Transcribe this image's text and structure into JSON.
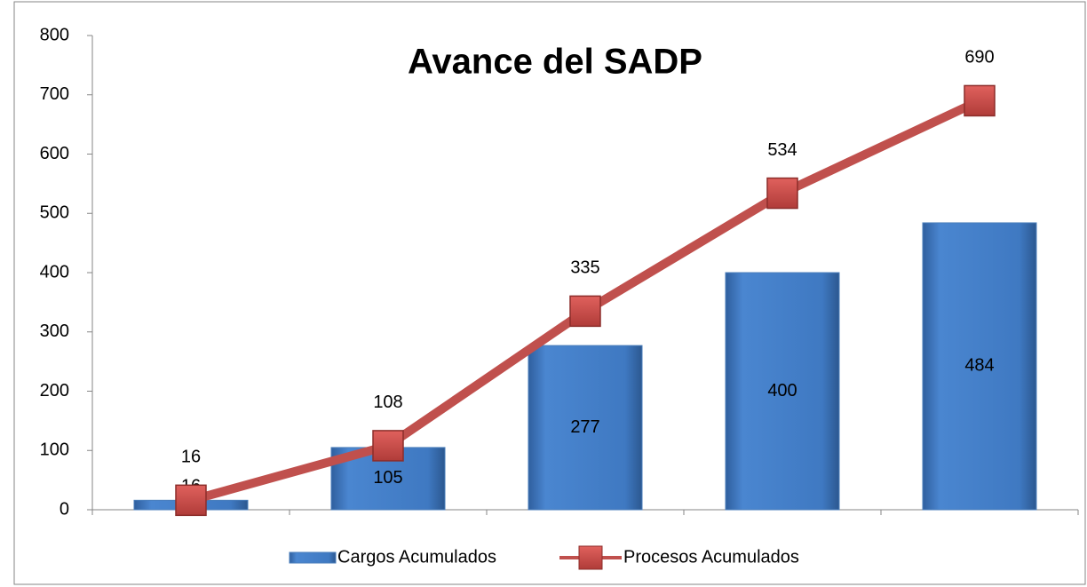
{
  "chart_data": {
    "type": "bar",
    "title": "Avance del SADP",
    "categories": [
      null,
      null,
      null,
      null,
      null
    ],
    "series": [
      {
        "name": "Cargos Acumulados",
        "type": "bar",
        "color": "#4a7ebb",
        "values": [
          16,
          105,
          277,
          400,
          484
        ]
      },
      {
        "name": "Procesos Acumulados",
        "type": "line",
        "color": "#c0504d",
        "values": [
          16,
          108,
          335,
          534,
          690
        ]
      }
    ],
    "ylim": [
      0,
      800
    ],
    "yticks": [
      0,
      100,
      200,
      300,
      400,
      500,
      600,
      700,
      800
    ],
    "grid": false,
    "legend": "bottom"
  }
}
